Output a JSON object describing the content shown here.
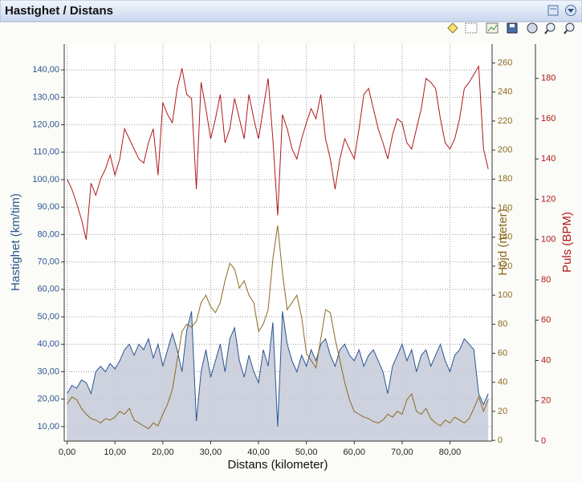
{
  "chart_data": {
    "type": "line",
    "title": "Hastighet / Distans",
    "xlabel": "Distans (kilometer)",
    "ylabel": "Hastighet (km/tim)",
    "y2label": "Höjd (meter)",
    "y3label": "Puls (BPM)",
    "grid": true,
    "xlim": [
      -0.6,
      88.8
    ],
    "ylim": [
      4.7,
      149.4
    ],
    "y2lim": [
      -0.5,
      273
    ],
    "y3lim": [
      0,
      197
    ],
    "xticks": [
      {
        "value": 0,
        "label": "0,00"
      },
      {
        "value": 10,
        "label": "10,00"
      },
      {
        "value": 20,
        "label": "20,00"
      },
      {
        "value": 30,
        "label": "30,00"
      },
      {
        "value": 40,
        "label": "40,00"
      },
      {
        "value": 50,
        "label": "50,00"
      },
      {
        "value": 60,
        "label": "60,00"
      },
      {
        "value": 70,
        "label": "70,00"
      },
      {
        "value": 80,
        "label": "80,00"
      }
    ],
    "yticks": [
      {
        "value": 10,
        "label": "10,00"
      },
      {
        "value": 20,
        "label": "20,00"
      },
      {
        "value": 30,
        "label": "30,00"
      },
      {
        "value": 40,
        "label": "40,00"
      },
      {
        "value": 50,
        "label": "50,00"
      },
      {
        "value": 60,
        "label": "60,00"
      },
      {
        "value": 70,
        "label": "70,00"
      },
      {
        "value": 80,
        "label": "80,00"
      },
      {
        "value": 90,
        "label": "90,00"
      },
      {
        "value": 100,
        "label": "100,00"
      },
      {
        "value": 110,
        "label": "110,00"
      },
      {
        "value": 120,
        "label": "120,00"
      },
      {
        "value": 130,
        "label": "130,00"
      },
      {
        "value": 140,
        "label": "140,00"
      }
    ],
    "y2ticks": [
      0,
      20,
      40,
      60,
      80,
      100,
      120,
      140,
      160,
      180,
      200,
      220,
      240,
      260
    ],
    "y3ticks": [
      0,
      20,
      40,
      60,
      80,
      100,
      120,
      140,
      160,
      180
    ],
    "x": [
      0,
      1,
      2,
      3,
      4,
      5,
      6,
      7,
      8,
      9,
      10,
      11,
      12,
      13,
      14,
      15,
      16,
      17,
      18,
      19,
      20,
      21,
      22,
      23,
      24,
      25,
      26,
      27,
      28,
      29,
      30,
      31,
      32,
      33,
      34,
      35,
      36,
      37,
      38,
      39,
      40,
      41,
      42,
      43,
      44,
      45,
      46,
      47,
      48,
      49,
      50,
      51,
      52,
      53,
      54,
      55,
      56,
      57,
      58,
      59,
      60,
      61,
      62,
      63,
      64,
      65,
      66,
      67,
      68,
      69,
      70,
      71,
      72,
      73,
      74,
      75,
      76,
      77,
      78,
      79,
      80,
      81,
      82,
      83,
      84,
      85,
      86,
      87,
      88
    ],
    "series": [
      {
        "name": "Hastighet",
        "color": "#2b5591",
        "fill": "#c4cad8",
        "axis": "y",
        "values": [
          22,
          25,
          24,
          27,
          26,
          22,
          30,
          32,
          30,
          33,
          31,
          34,
          38,
          40,
          36,
          40,
          38,
          42,
          35,
          40,
          32,
          38,
          44,
          38,
          30,
          45,
          52,
          12,
          30,
          38,
          28,
          34,
          40,
          30,
          42,
          46,
          34,
          28,
          36,
          30,
          26,
          38,
          32,
          48,
          10,
          52,
          40,
          34,
          30,
          36,
          32,
          38,
          34,
          40,
          42,
          36,
          32,
          38,
          40,
          36,
          34,
          38,
          32,
          36,
          38,
          34,
          30,
          22,
          32,
          36,
          40,
          34,
          38,
          30,
          36,
          38,
          32,
          36,
          40,
          34,
          30,
          36,
          38,
          42,
          40,
          38,
          22,
          18,
          22
        ]
      },
      {
        "name": "Höjd",
        "color": "#8b6a1f",
        "axis": "y2",
        "values": [
          25,
          30,
          28,
          22,
          18,
          15,
          14,
          12,
          15,
          14,
          16,
          20,
          18,
          22,
          14,
          12,
          10,
          8,
          12,
          10,
          18,
          25,
          35,
          55,
          75,
          80,
          78,
          82,
          95,
          100,
          92,
          88,
          95,
          110,
          122,
          118,
          105,
          110,
          100,
          95,
          75,
          80,
          90,
          125,
          148,
          115,
          90,
          95,
          100,
          85,
          60,
          55,
          50,
          70,
          90,
          88,
          70,
          55,
          40,
          28,
          20,
          18,
          16,
          15,
          13,
          12,
          14,
          18,
          16,
          20,
          18,
          28,
          32,
          20,
          18,
          22,
          15,
          12,
          10,
          14,
          12,
          16,
          14,
          12,
          15,
          22,
          30,
          20,
          28
        ]
      },
      {
        "name": "Puls",
        "color": "#b01818",
        "axis": "y3",
        "values": [
          130,
          125,
          118,
          110,
          100,
          128,
          122,
          130,
          135,
          142,
          132,
          140,
          155,
          150,
          145,
          140,
          138,
          148,
          155,
          132,
          168,
          162,
          158,
          175,
          185,
          172,
          170,
          125,
          178,
          165,
          150,
          160,
          172,
          148,
          155,
          170,
          160,
          150,
          172,
          160,
          150,
          165,
          180,
          150,
          112,
          162,
          155,
          145,
          140,
          150,
          158,
          165,
          160,
          172,
          150,
          140,
          125,
          140,
          150,
          145,
          140,
          155,
          172,
          175,
          165,
          155,
          148,
          140,
          152,
          160,
          158,
          148,
          145,
          155,
          165,
          180,
          178,
          175,
          160,
          148,
          145,
          150,
          160,
          175,
          178,
          182,
          186,
          145,
          135
        ]
      }
    ]
  }
}
